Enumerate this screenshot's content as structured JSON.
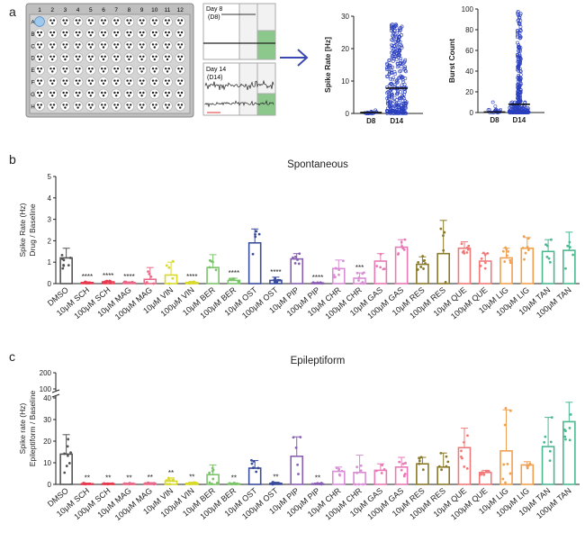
{
  "panel_labels": {
    "a": "a",
    "b": "b",
    "c": "c"
  },
  "plate": {
    "col_labels": [
      "1",
      "2",
      "3",
      "4",
      "5",
      "6",
      "7",
      "8",
      "9",
      "10",
      "11",
      "12"
    ],
    "row_labels": [
      "A",
      "B",
      "C",
      "D",
      "E",
      "F",
      "G",
      "H"
    ]
  },
  "traces": {
    "day8_label": "Day 8",
    "day8_sub": "(D8)",
    "day14_label": "Day 14",
    "day14_sub": "(D14)"
  },
  "colors": {
    "DMSO": "#555555",
    "SCH": "#e83a4f",
    "MAG": "#e86a88",
    "VIN": "#d9d92a",
    "BER": "#7cc46a",
    "OST": "#3a4c9c",
    "PIP": "#8a5fb4",
    "CHR": "#d98ed6",
    "GAS": "#e87ab4",
    "RES": "#8a7a2a",
    "QUE": "#f07a7a",
    "LIG": "#f0a050",
    "TAN": "#4cb890",
    "scatter_blue": "#2a3fbf",
    "arrow": "#3a4ab0"
  },
  "chart_data": [
    {
      "type": "scatter",
      "ylabel": "Spike Rate [Hz]",
      "categories": [
        "D8",
        "D14"
      ],
      "ylim": [
        0,
        30
      ],
      "yticks": [
        0,
        10,
        20,
        30
      ],
      "means": [
        0.3,
        7.8
      ]
    },
    {
      "type": "scatter",
      "ylabel": "Burst Count",
      "categories": [
        "D8",
        "D14"
      ],
      "ylim": [
        0,
        100
      ],
      "yticks": [
        0,
        20,
        40,
        60,
        80,
        100
      ],
      "means": [
        0.5,
        8
      ]
    },
    {
      "type": "bar",
      "title": "Spontaneous",
      "ylabel_lines": [
        "Spike Rate (Hz)",
        "Drug / Baseline"
      ],
      "ylim": [
        0,
        5
      ],
      "yticks": [
        0,
        1,
        2,
        3,
        4,
        5
      ],
      "categories": [
        "DMSO",
        "10μM SCH",
        "100μM SCH",
        "10μM MAG",
        "100μM MAG",
        "10μM VIN",
        "100μM VIN",
        "10μM BER",
        "100μM BER",
        "10μM OST",
        "100μM OST",
        "10μM PIP",
        "100μM PIP",
        "10μM CHR",
        "100μM CHR",
        "10μM GAS",
        "100μM GAS",
        "10μM RES",
        "100μM RES",
        "10μM QUE",
        "100μM QUE",
        "10μM LIG",
        "100μM LIG",
        "10μM TAN",
        "100μM TAN"
      ],
      "drugs": [
        "DMSO",
        "SCH",
        "SCH",
        "MAG",
        "MAG",
        "VIN",
        "VIN",
        "BER",
        "BER",
        "OST",
        "OST",
        "PIP",
        "PIP",
        "CHR",
        "CHR",
        "GAS",
        "GAS",
        "RES",
        "RES",
        "QUE",
        "QUE",
        "LIG",
        "LIG",
        "TAN",
        "TAN"
      ],
      "values": [
        1.2,
        0.05,
        0.08,
        0.05,
        0.2,
        0.4,
        0.05,
        0.75,
        0.15,
        1.9,
        0.15,
        1.15,
        0.03,
        0.7,
        0.25,
        1.05,
        1.7,
        0.9,
        1.4,
        1.65,
        1.05,
        1.2,
        1.65,
        1.5,
        1.55
      ],
      "errors": [
        0.45,
        0.03,
        0.05,
        0.03,
        0.55,
        0.6,
        0.04,
        0.6,
        0.1,
        0.65,
        0.15,
        0.25,
        0.02,
        0.4,
        0.25,
        0.35,
        0.35,
        0.35,
        1.55,
        0.3,
        0.35,
        0.45,
        0.5,
        0.55,
        0.85
      ],
      "significance": [
        "",
        "****",
        "****",
        "****",
        "",
        "",
        "****",
        "",
        "****",
        "",
        "****",
        "",
        "****",
        "",
        "***",
        "",
        "",
        "",
        "",
        "",
        "",
        "",
        "",
        "",
        ""
      ]
    },
    {
      "type": "bar",
      "title": "Epileptiform",
      "ylabel_lines": [
        "Spike rate (Hz)",
        "Epileptiform / Baseline"
      ],
      "ylim": [
        0,
        200
      ],
      "yticks": [
        0,
        10,
        20,
        30,
        40,
        100,
        200
      ],
      "y_break": [
        40,
        100
      ],
      "categories": [
        "DMSO",
        "10μM SCH",
        "100μM SCH",
        "10μM MAG",
        "100μM MAG",
        "10μM VIN",
        "100μM VIN",
        "10μM BER",
        "100μM BER",
        "10μM OST",
        "100μM OST",
        "10μM PIP",
        "100μM PIP",
        "10μM CHR",
        "100μM CHR",
        "10μM GAS",
        "100μM GAS",
        "10μM RES",
        "100μM RES",
        "10μM QUE",
        "100μM QUE",
        "10μM LIG",
        "100μM LIG",
        "10μM TAN",
        "100μM TAN"
      ],
      "drugs": [
        "DMSO",
        "SCH",
        "SCH",
        "MAG",
        "MAG",
        "VIN",
        "VIN",
        "BER",
        "BER",
        "OST",
        "OST",
        "PIP",
        "PIP",
        "CHR",
        "CHR",
        "GAS",
        "GAS",
        "RES",
        "RES",
        "QUE",
        "QUE",
        "LIG",
        "LIG",
        "TAN",
        "TAN"
      ],
      "values": [
        14,
        0.3,
        0.3,
        0.3,
        0.4,
        1.5,
        0.5,
        4.5,
        0.3,
        7.5,
        0.5,
        13,
        0.3,
        6,
        5.5,
        6.5,
        8,
        9.5,
        8,
        17,
        5.5,
        15.5,
        9,
        17.5,
        29
      ],
      "errors": [
        9,
        0.3,
        0.3,
        0.3,
        0.4,
        1.5,
        0.5,
        4.5,
        0.3,
        3.5,
        0.5,
        9,
        0.3,
        2,
        8,
        3,
        4.5,
        3,
        6.5,
        9,
        1,
        19,
        1.5,
        13.5,
        9
      ],
      "significance": [
        "",
        "**",
        "**",
        "**",
        "**",
        "**",
        "**",
        "",
        "**",
        "",
        "**",
        "",
        "**",
        "",
        "",
        "",
        "",
        "",
        "",
        "",
        "",
        "",
        "",
        "",
        ""
      ]
    }
  ]
}
